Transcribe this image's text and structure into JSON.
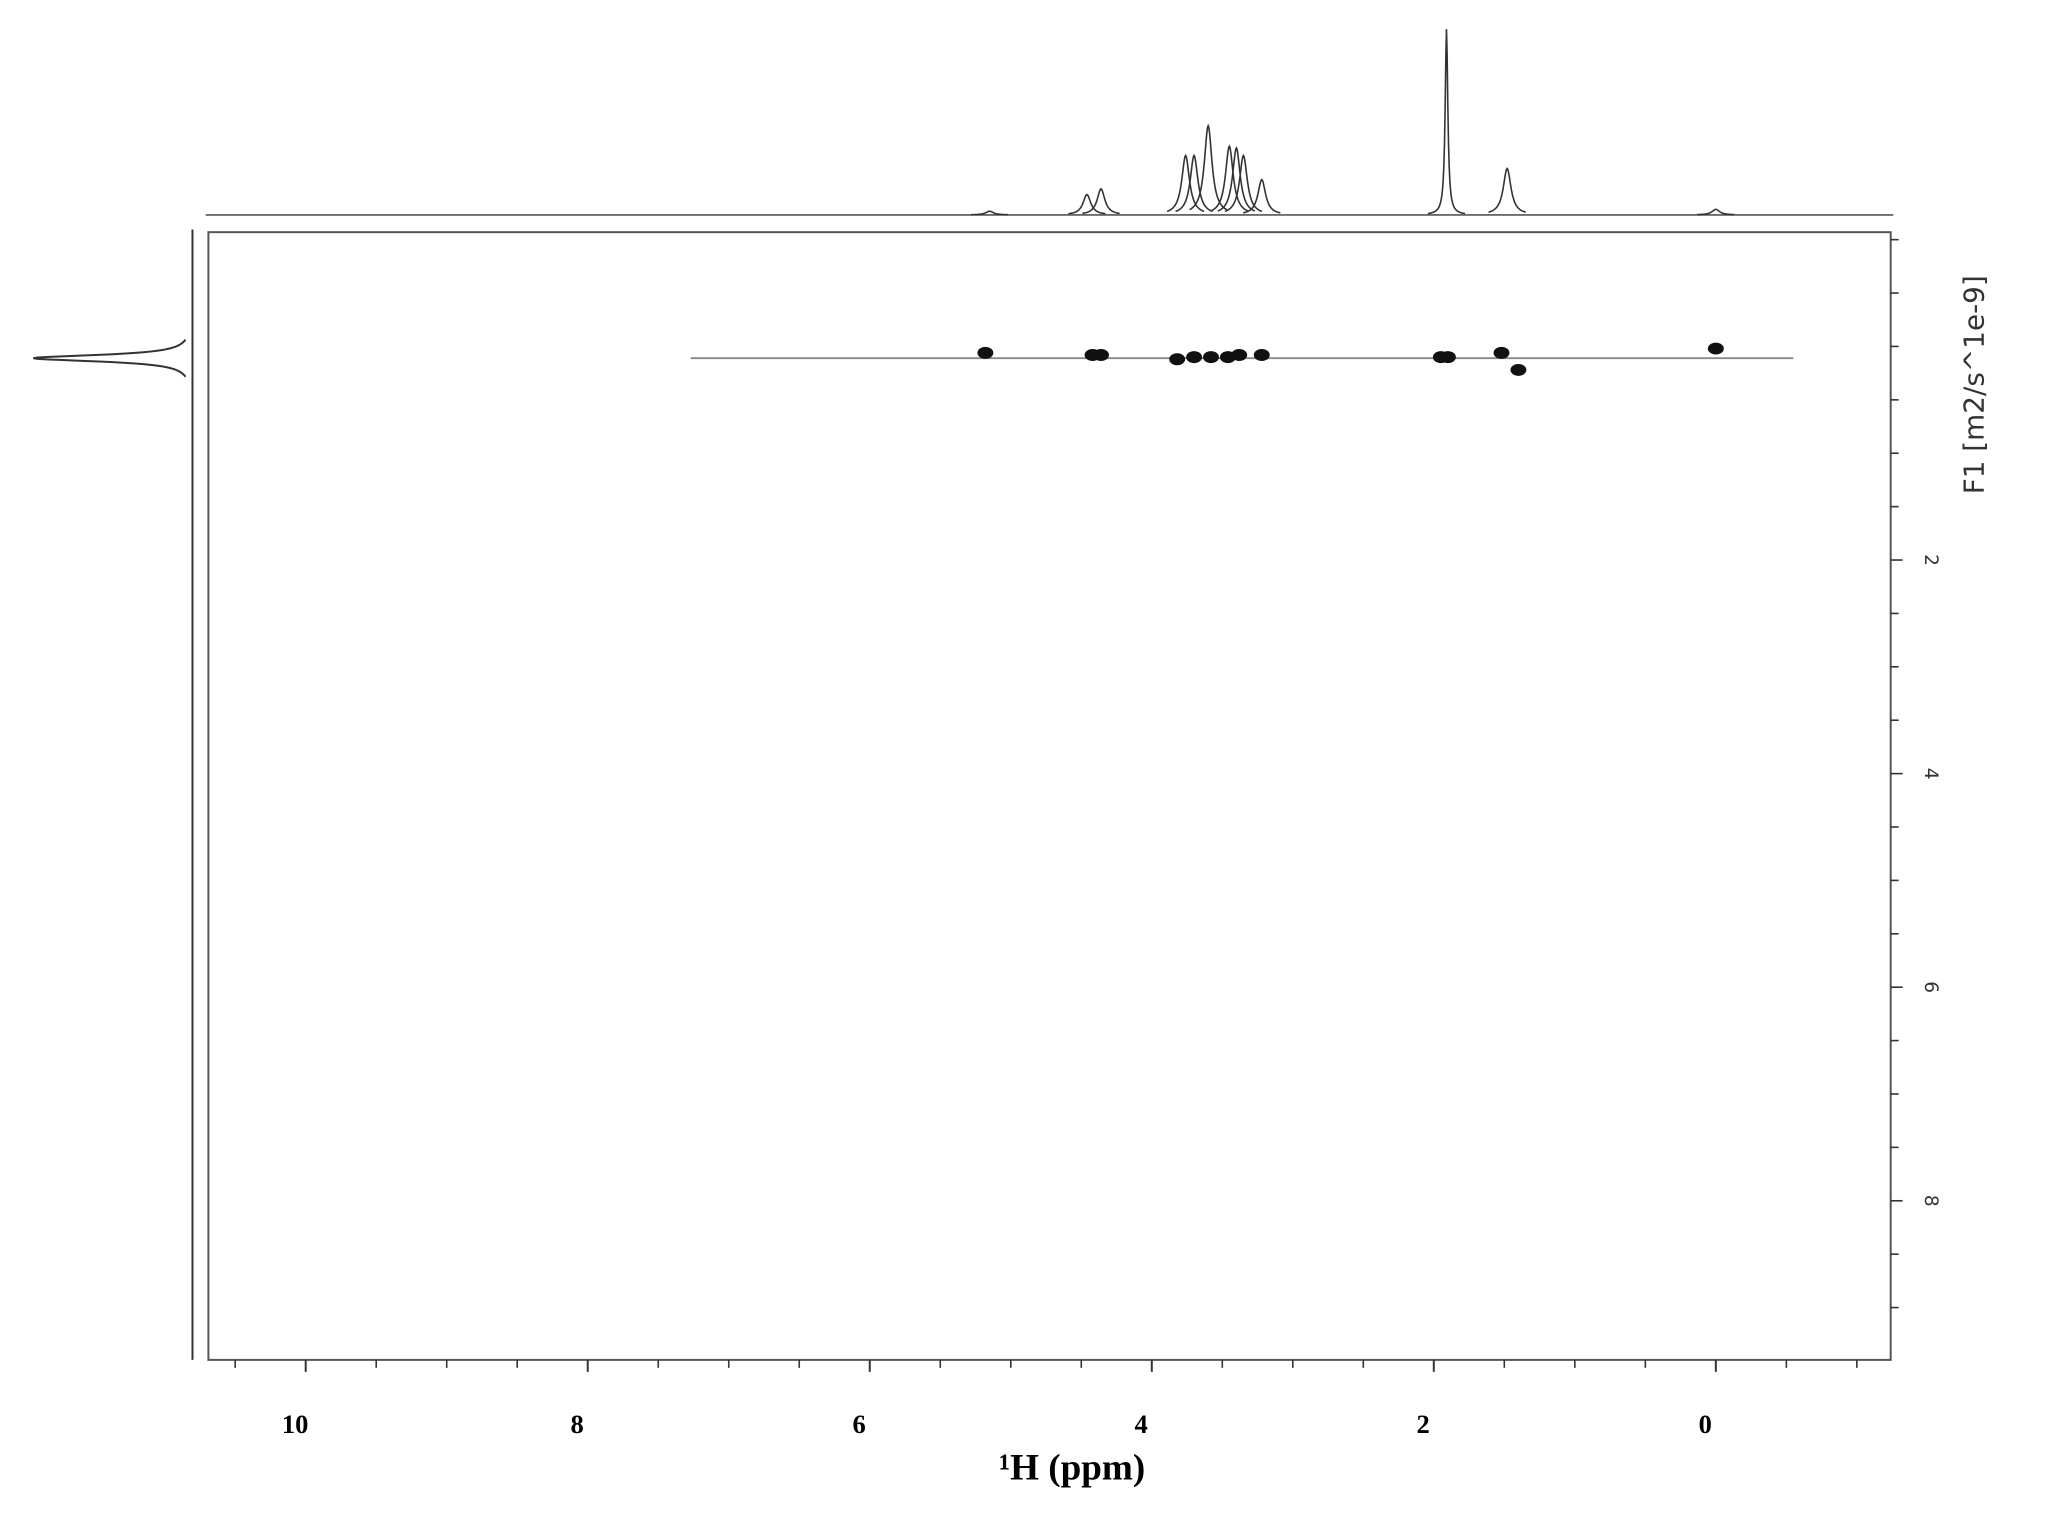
{
  "chart_data": {
    "type": "dosy",
    "x_label": "¹H (ppm)",
    "y_label": "F1 [m2/s^1e-9]",
    "xlim": [
      10.69,
      -1.24
    ],
    "xticks": [
      10,
      8,
      6,
      4,
      2,
      0
    ],
    "xminorticks": [
      10.5,
      9.5,
      9,
      8.5,
      7.5,
      7,
      6.5,
      5.5,
      5,
      4.5,
      3.5,
      3,
      2.5,
      1.5,
      1,
      0.5,
      -0.5,
      -1
    ],
    "ylim": [
      -1.07,
      9.49
    ],
    "yticks": [
      2,
      4,
      6,
      8
    ],
    "yminorticks": [
      -1,
      -0.5,
      0,
      0.5,
      1,
      1.5,
      2.5,
      3,
      3.5,
      4.5,
      5,
      5.5,
      6.5,
      7,
      7.5,
      8.5,
      9
    ],
    "color": "#111111",
    "h1_projection": {
      "x": [
        5.15,
        4.46,
        4.36,
        3.76,
        3.7,
        3.6,
        3.45,
        3.4,
        3.35,
        3.22,
        1.91,
        1.48,
        0.0
      ],
      "height": [
        2,
        11,
        14,
        32,
        32,
        48,
        37,
        36,
        32,
        19,
        100,
        25,
        3
      ]
    },
    "f1_projection": {
      "y": [
        0.11
      ],
      "height": [
        100
      ]
    },
    "diffusion_line": {
      "x": [
        7.27,
        -0.55
      ],
      "y": [
        0.11,
        0.11
      ]
    },
    "spots": {
      "x": [
        5.18,
        4.42,
        4.36,
        3.82,
        3.7,
        3.58,
        3.46,
        3.38,
        3.22,
        1.95,
        1.9,
        1.52,
        1.4,
        0.0
      ],
      "y": [
        0.06,
        0.08,
        0.08,
        0.12,
        0.1,
        0.1,
        0.1,
        0.08,
        0.08,
        0.1,
        0.1,
        0.06,
        0.22,
        0.02
      ]
    }
  }
}
